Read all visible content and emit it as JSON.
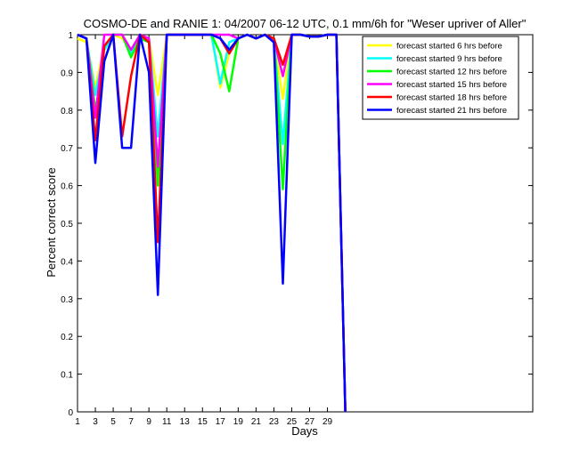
{
  "chart_data": {
    "type": "line",
    "title": "COSMO-DE and RANIE 1: 04/2007 06-12 UTC, 0.1 mm/6h for \"Weser upriver of Aller\"",
    "xlabel": "Days",
    "ylabel": "Percent correct score",
    "xlim": [
      1,
      52
    ],
    "ylim": [
      0,
      1
    ],
    "xticks": [
      1,
      3,
      5,
      7,
      9,
      11,
      13,
      15,
      17,
      19,
      21,
      23,
      25,
      27,
      29
    ],
    "yticks": [
      0,
      0.1,
      0.2,
      0.3,
      0.4,
      0.5,
      0.6,
      0.7,
      0.8,
      0.9,
      1
    ],
    "ytick_labels": [
      "0",
      "0.1",
      "0.2",
      "0.3",
      "0.4",
      "0.5",
      "0.6",
      "0.7",
      "0.8",
      "0.9",
      "1"
    ],
    "legend_position": "top-right",
    "series": [
      {
        "name": "forecast started 6 hrs before",
        "color": "#ffff00",
        "x": [
          1,
          2,
          3,
          4,
          5,
          6,
          7,
          8,
          9,
          10,
          11,
          12,
          13,
          14,
          15,
          16,
          17,
          18,
          19,
          20,
          21,
          22,
          23,
          24,
          25,
          26,
          27,
          28,
          29,
          30,
          31
        ],
        "y": [
          0.99,
          0.98,
          0.86,
          0.97,
          1.0,
          0.99,
          0.96,
          0.99,
          0.99,
          0.84,
          1.0,
          1.0,
          1.0,
          1.0,
          1.0,
          1.0,
          0.86,
          0.95,
          0.99,
          1.0,
          0.99,
          1.0,
          0.99,
          0.83,
          1.0,
          1.0,
          0.995,
          0.995,
          1.0,
          1.0,
          0.0
        ]
      },
      {
        "name": "forecast started 9 hrs before",
        "color": "#00ffff",
        "x": [
          1,
          2,
          3,
          4,
          5,
          6,
          7,
          8,
          9,
          10,
          11,
          12,
          13,
          14,
          15,
          16,
          17,
          18,
          19,
          20,
          21,
          22,
          23,
          24,
          25,
          26,
          27,
          28,
          29,
          30,
          31
        ],
        "y": [
          1.0,
          0.99,
          0.84,
          0.96,
          1.0,
          1.0,
          0.95,
          0.99,
          0.99,
          0.73,
          1.0,
          1.0,
          1.0,
          1.0,
          1.0,
          1.0,
          0.87,
          0.98,
          0.99,
          1.0,
          0.99,
          1.0,
          0.99,
          0.71,
          1.0,
          1.0,
          0.995,
          0.995,
          1.0,
          1.0,
          0.0
        ]
      },
      {
        "name": "forecast started 12 hrs before",
        "color": "#00ff00",
        "x": [
          1,
          2,
          3,
          4,
          5,
          6,
          7,
          8,
          9,
          10,
          11,
          12,
          13,
          14,
          15,
          16,
          17,
          18,
          19,
          20,
          21,
          22,
          23,
          24,
          25,
          26,
          27,
          28,
          29,
          30,
          31
        ],
        "y": [
          1.0,
          0.99,
          0.8,
          0.93,
          1.0,
          1.0,
          0.94,
          0.99,
          0.98,
          0.6,
          1.0,
          1.0,
          1.0,
          1.0,
          1.0,
          1.0,
          0.95,
          0.85,
          0.99,
          1.0,
          0.99,
          1.0,
          0.99,
          0.59,
          1.0,
          1.0,
          0.995,
          0.995,
          1.0,
          1.0,
          0.0
        ]
      },
      {
        "name": "forecast started 15 hrs before",
        "color": "#ff00ff",
        "x": [
          1,
          2,
          3,
          4,
          5,
          6,
          7,
          8,
          9,
          10,
          11,
          12,
          13,
          14,
          15,
          16,
          17,
          18,
          19,
          20,
          21,
          22,
          23,
          24,
          25,
          26,
          27,
          28,
          29,
          30,
          31
        ],
        "y": [
          1.0,
          0.99,
          0.78,
          1.0,
          1.0,
          1.0,
          0.96,
          1.0,
          0.99,
          0.65,
          1.0,
          1.0,
          1.0,
          1.0,
          1.0,
          1.0,
          1.0,
          1.0,
          0.99,
          1.0,
          0.99,
          1.0,
          0.99,
          0.89,
          1.0,
          1.0,
          0.995,
          0.995,
          1.0,
          1.0,
          0.0
        ]
      },
      {
        "name": "forecast started 18 hrs before",
        "color": "#ff0000",
        "x": [
          1,
          2,
          3,
          4,
          5,
          6,
          7,
          8,
          9,
          10,
          11,
          12,
          13,
          14,
          15,
          16,
          17,
          18,
          19,
          20,
          21,
          22,
          23,
          24,
          25,
          26,
          27,
          28,
          29,
          30,
          31
        ],
        "y": [
          1.0,
          0.99,
          0.72,
          0.97,
          1.0,
          0.73,
          0.89,
          1.0,
          0.98,
          0.45,
          1.0,
          1.0,
          1.0,
          1.0,
          1.0,
          1.0,
          0.99,
          0.95,
          0.99,
          1.0,
          0.99,
          1.0,
          0.99,
          0.92,
          1.0,
          1.0,
          0.995,
          0.995,
          1.0,
          1.0,
          0.0
        ]
      },
      {
        "name": "forecast started 21 hrs before",
        "color": "#0000ff",
        "x": [
          1,
          2,
          3,
          4,
          5,
          6,
          7,
          8,
          9,
          10,
          11,
          12,
          13,
          14,
          15,
          16,
          17,
          18,
          19,
          20,
          21,
          22,
          23,
          24,
          25,
          26,
          27,
          28,
          29,
          30,
          31
        ],
        "y": [
          1.0,
          0.99,
          0.66,
          0.93,
          1.0,
          0.7,
          0.7,
          1.0,
          0.9,
          0.31,
          1.0,
          1.0,
          1.0,
          1.0,
          1.0,
          1.0,
          0.99,
          0.96,
          0.99,
          1.0,
          0.99,
          1.0,
          0.98,
          0.34,
          1.0,
          1.0,
          0.995,
          0.995,
          1.0,
          1.0,
          0.0
        ]
      }
    ]
  }
}
